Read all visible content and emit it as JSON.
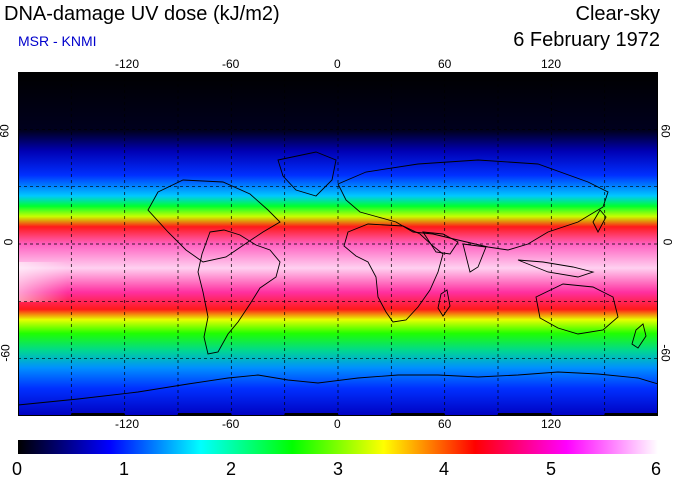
{
  "header": {
    "title": "DNA-damage UV dose (kJ/m2)",
    "subtitle": "MSR - KNMI",
    "sky_condition": "Clear-sky",
    "date": "6 February 1972"
  },
  "map": {
    "lon_ticks": [
      "-120",
      "-60",
      "0",
      "60",
      "120"
    ],
    "lat_ticks": [
      "60",
      "0",
      "-60"
    ],
    "lon_range": [
      -180,
      180
    ],
    "lat_range": [
      -90,
      90
    ],
    "grid_spacing_deg": 30
  },
  "colorbar": {
    "labels": [
      "0",
      "1",
      "2",
      "3",
      "4",
      "5",
      "6"
    ],
    "min": 0,
    "max": 6,
    "stops": [
      "#000000",
      "#0000ff",
      "#00ffff",
      "#00ff00",
      "#ffff00",
      "#ff0000",
      "#ff00ff",
      "#ffffff"
    ]
  }
}
